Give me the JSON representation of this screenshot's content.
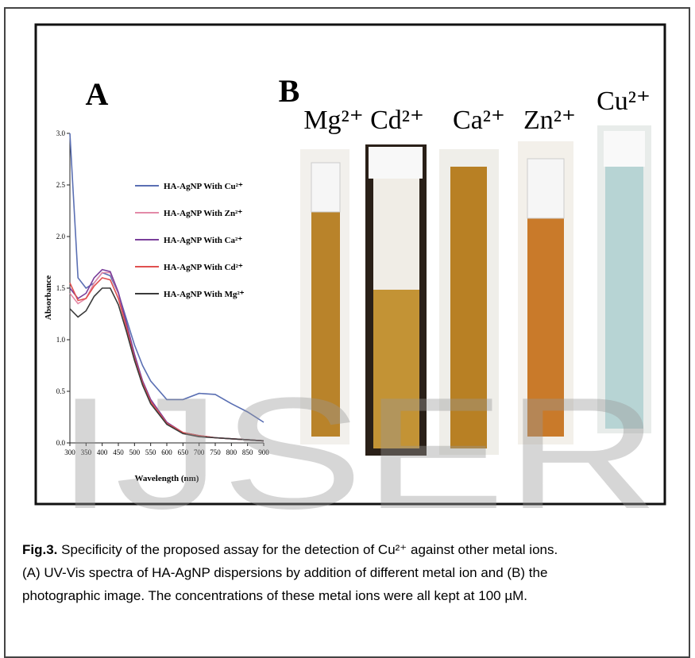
{
  "panel_a_label": "A",
  "panel_b_label": "B",
  "chart_data": {
    "type": "line",
    "x_label": "Wavelength (nm)",
    "y_label": "Absorbance",
    "x": [
      300,
      325,
      350,
      375,
      400,
      425,
      450,
      475,
      500,
      525,
      550,
      600,
      650,
      700,
      750,
      800,
      850,
      900
    ],
    "series": [
      {
        "name": "HA-AgNP With Cu²⁺",
        "color": "#5a6fb3",
        "values": [
          3.0,
          1.6,
          1.5,
          1.55,
          1.65,
          1.62,
          1.45,
          1.2,
          0.95,
          0.75,
          0.6,
          0.42,
          0.42,
          0.48,
          0.47,
          0.38,
          0.3,
          0.2
        ]
      },
      {
        "name": "HA-AgNP With Zn²⁺",
        "color": "#e38aa8",
        "values": [
          1.45,
          1.35,
          1.4,
          1.55,
          1.65,
          1.65,
          1.45,
          1.15,
          0.85,
          0.6,
          0.42,
          0.2,
          0.1,
          0.07,
          0.05,
          0.04,
          0.03,
          0.02
        ]
      },
      {
        "name": "HA-AgNP With Ca²⁺",
        "color": "#7a3f9b",
        "values": [
          1.5,
          1.4,
          1.45,
          1.6,
          1.68,
          1.66,
          1.46,
          1.16,
          0.86,
          0.6,
          0.42,
          0.2,
          0.1,
          0.07,
          0.05,
          0.04,
          0.03,
          0.02
        ]
      },
      {
        "name": "HA-AgNP With Cd²⁺",
        "color": "#e0504f",
        "values": [
          1.55,
          1.38,
          1.4,
          1.52,
          1.6,
          1.58,
          1.4,
          1.12,
          0.82,
          0.58,
          0.4,
          0.19,
          0.1,
          0.07,
          0.05,
          0.04,
          0.03,
          0.02
        ]
      },
      {
        "name": "HA-AgNP With Mg²⁺",
        "color": "#3a3a3a",
        "values": [
          1.3,
          1.22,
          1.28,
          1.42,
          1.5,
          1.5,
          1.34,
          1.08,
          0.8,
          0.56,
          0.38,
          0.18,
          0.09,
          0.06,
          0.05,
          0.04,
          0.03,
          0.02
        ]
      }
    ],
    "xlim": [
      300,
      900
    ],
    "xticks": [
      300,
      350,
      400,
      450,
      500,
      550,
      600,
      650,
      700,
      750,
      800,
      850,
      900
    ],
    "ylim": [
      0,
      3
    ],
    "yticks": [
      {
        "value": 0,
        "label": "0.0"
      },
      0.5,
      {
        "value": 1,
        "label": "1.0"
      },
      1.5,
      {
        "value": 2,
        "label": "2.0"
      },
      2.5,
      {
        "value": 3,
        "label": "3.0"
      }
    ]
  },
  "photo_labels": [
    "Mg²⁺",
    "Cd²⁺",
    "Ca²⁺",
    "Zn²⁺",
    "Cu²⁺"
  ],
  "watermark": "IJSER",
  "caption": {
    "label": "Fig.3.",
    "lines": [
      " Specificity of the proposed assay for the detection of Cu²⁺ against other metal ions.",
      "(A) UV-Vis spectra of HA-AgNP dispersions by addition of different metal ion and (B) the",
      "photographic image. The concentrations of these metal ions were all kept at 100 µM."
    ]
  }
}
